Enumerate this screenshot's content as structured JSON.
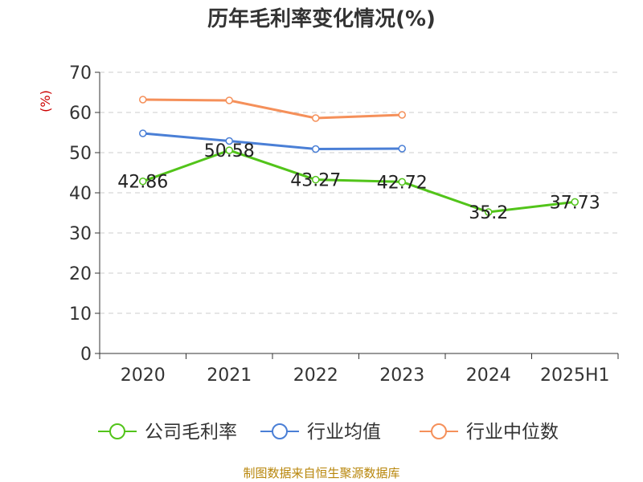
{
  "chart_data": {
    "type": "line",
    "title": "历年毛利率变化情况(%)",
    "ylabel": "(%)",
    "xlabel": "",
    "ylim": [
      0,
      70
    ],
    "yticks": [
      0,
      10,
      20,
      30,
      40,
      50,
      60,
      70
    ],
    "categories": [
      "2020",
      "2021",
      "2022",
      "2023",
      "2024",
      "2025H1"
    ],
    "grid": "dashed horizontal",
    "legend_position": "bottom",
    "series": [
      {
        "name": "公司毛利率",
        "color": "#52c41a",
        "values": [
          42.86,
          50.58,
          43.27,
          42.72,
          35.2,
          37.73
        ],
        "labels": [
          "42.86",
          "50.58",
          "43.27",
          "42.72",
          "35.2",
          "37.73"
        ]
      },
      {
        "name": "行业均值",
        "color": "#4a7fd6",
        "values": [
          54.8,
          52.9,
          50.9,
          51.0,
          null,
          null
        ]
      },
      {
        "name": "行业中位数",
        "color": "#f5905a",
        "values": [
          63.2,
          63.0,
          58.6,
          59.4,
          null,
          null
        ]
      }
    ]
  },
  "footer": {
    "source": "制图数据来自恒生聚源数据库"
  }
}
